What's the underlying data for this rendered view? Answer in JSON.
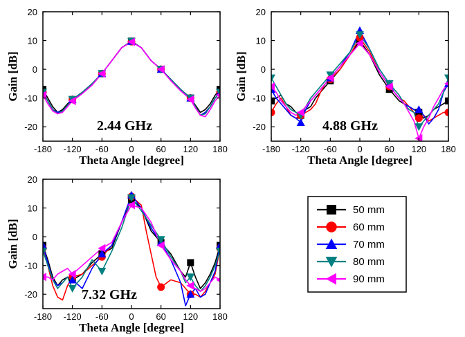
{
  "chart_data": [
    {
      "type": "line",
      "annotation": "2.44 GHz",
      "xlabel": "Theta Angle [degree]",
      "ylabel": "Gain [dB]",
      "xlim": [
        -180,
        180
      ],
      "ylim": [
        -25,
        20
      ],
      "xticks": [
        "-180",
        "-120",
        "-60",
        "0",
        "60",
        "120",
        "180"
      ],
      "yticks": [
        "-20",
        "-10",
        "0",
        "10",
        "20"
      ],
      "marker_x": [
        -180,
        -120,
        -60,
        0,
        60,
        120,
        180
      ],
      "series": [
        {
          "name": "50 mm",
          "x": [
            -180,
            -170,
            -160,
            -150,
            -140,
            -130,
            -120,
            -100,
            -80,
            -60,
            -40,
            -20,
            0,
            20,
            40,
            60,
            80,
            100,
            120,
            130,
            140,
            150,
            160,
            170,
            180
          ],
          "y": [
            -7,
            -10,
            -13,
            -15,
            -14,
            -12,
            -10.5,
            -8,
            -5,
            -1.5,
            3,
            7.5,
            9.8,
            7.5,
            3,
            0,
            -3.5,
            -7,
            -10,
            -12.5,
            -15,
            -14,
            -12,
            -9,
            -7
          ]
        },
        {
          "name": "60 mm",
          "x": [
            -180,
            -170,
            -160,
            -150,
            -140,
            -130,
            -120,
            -100,
            -80,
            -60,
            -40,
            -20,
            0,
            20,
            40,
            60,
            80,
            100,
            120,
            130,
            140,
            150,
            160,
            170,
            180
          ],
          "y": [
            -8,
            -11,
            -14,
            -15,
            -14.5,
            -12.5,
            -10.5,
            -8,
            -5,
            -1.5,
            3,
            7.5,
            9.6,
            7.5,
            3,
            0,
            -3.5,
            -7,
            -10,
            -13,
            -16,
            -15,
            -13,
            -10,
            -8
          ]
        },
        {
          "name": "70 mm",
          "x": [
            -180,
            -170,
            -160,
            -150,
            -140,
            -130,
            -120,
            -100,
            -80,
            -60,
            -40,
            -20,
            0,
            20,
            40,
            60,
            80,
            100,
            120,
            130,
            140,
            150,
            160,
            170,
            180
          ],
          "y": [
            -8,
            -11,
            -14,
            -15,
            -14.5,
            -12.5,
            -10.5,
            -8,
            -5,
            -1.5,
            3,
            7.5,
            9.7,
            7.5,
            3,
            0,
            -3.5,
            -7,
            -10,
            -13,
            -16,
            -15,
            -13,
            -10,
            -8
          ]
        },
        {
          "name": "80 mm",
          "x": [
            -180,
            -170,
            -160,
            -150,
            -140,
            -130,
            -120,
            -100,
            -80,
            -60,
            -40,
            -20,
            0,
            20,
            40,
            60,
            80,
            100,
            120,
            130,
            140,
            150,
            160,
            170,
            180
          ],
          "y": [
            -8,
            -11,
            -14,
            -15.5,
            -14.5,
            -12.5,
            -10.5,
            -8,
            -5,
            -1.5,
            3,
            7.5,
            9.7,
            7.5,
            3,
            0,
            -3.5,
            -7,
            -10,
            -13,
            -16,
            -15.5,
            -13,
            -10,
            -8
          ]
        },
        {
          "name": "90 mm",
          "x": [
            -180,
            -170,
            -160,
            -150,
            -140,
            -130,
            -120,
            -100,
            -80,
            -60,
            -40,
            -20,
            0,
            20,
            40,
            60,
            80,
            100,
            120,
            130,
            140,
            150,
            160,
            170,
            180
          ],
          "y": [
            -9,
            -12,
            -14.5,
            -15.5,
            -15,
            -13,
            -11,
            -8.5,
            -5.5,
            -1.5,
            3,
            7.5,
            9.5,
            7.5,
            3,
            0,
            -4,
            -7.5,
            -10.5,
            -13.5,
            -16,
            -16.5,
            -14,
            -11,
            -9
          ]
        }
      ]
    },
    {
      "type": "line",
      "annotation": "4.88 GHz",
      "xlabel": "Theta Angle [degree]",
      "ylabel": "Gain [dB]",
      "xlim": [
        -180,
        180
      ],
      "ylim": [
        -25,
        20
      ],
      "xticks": [
        "-180",
        "-120",
        "-60",
        "0",
        "60",
        "120",
        "180"
      ],
      "yticks": [
        "-20",
        "-10",
        "0",
        "10",
        "20"
      ],
      "marker_x": [
        -180,
        -120,
        -60,
        0,
        60,
        120,
        180
      ],
      "series": [
        {
          "name": "50 mm",
          "x": [
            -180,
            -170,
            -160,
            -150,
            -140,
            -130,
            -120,
            -110,
            -100,
            -90,
            -80,
            -70,
            -60,
            -40,
            -20,
            0,
            20,
            40,
            60,
            70,
            80,
            90,
            100,
            110,
            120,
            130,
            140,
            150,
            160,
            170,
            180
          ],
          "y": [
            -11,
            -10,
            -9,
            -12,
            -13,
            -15,
            -16,
            -14,
            -13,
            -10,
            -8,
            -6,
            -4,
            0,
            5,
            10,
            5,
            -2,
            -7,
            -9,
            -11,
            -12,
            -13,
            -14,
            -15,
            -17,
            -16,
            -14,
            -13,
            -12,
            -11
          ]
        },
        {
          "name": "60 mm",
          "x": [
            -180,
            -170,
            -160,
            -150,
            -140,
            -130,
            -120,
            -110,
            -100,
            -90,
            -80,
            -70,
            -60,
            -40,
            -20,
            0,
            20,
            40,
            60,
            70,
            80,
            90,
            100,
            110,
            120,
            130,
            140,
            150,
            160,
            170,
            180
          ],
          "y": [
            -15,
            -12,
            -10,
            -13,
            -16,
            -17,
            -16,
            -15,
            -14,
            -12,
            -8,
            -5,
            -3.5,
            0,
            5,
            11,
            6,
            -1,
            -6,
            -8,
            -10,
            -11,
            -13,
            -15,
            -17,
            -16,
            -18,
            -17,
            -16,
            -15,
            -15
          ]
        },
        {
          "name": "70 mm",
          "x": [
            -180,
            -170,
            -160,
            -150,
            -140,
            -130,
            -120,
            -110,
            -100,
            -90,
            -80,
            -70,
            -60,
            -40,
            -20,
            0,
            20,
            40,
            60,
            70,
            80,
            90,
            100,
            110,
            120,
            130,
            140,
            150,
            160,
            170,
            180
          ],
          "y": [
            -7,
            -10,
            -12,
            -14,
            -16,
            -17,
            -18.5,
            -14,
            -11,
            -9,
            -7,
            -5,
            -3,
            1,
            6,
            13.5,
            7,
            0,
            -5,
            -8,
            -10,
            -12,
            -13,
            -14,
            -14,
            -16,
            -19,
            -17,
            -14,
            -8,
            -5
          ]
        },
        {
          "name": "80 mm",
          "x": [
            -180,
            -170,
            -160,
            -150,
            -140,
            -130,
            -120,
            -110,
            -100,
            -90,
            -80,
            -70,
            -60,
            -40,
            -20,
            0,
            20,
            40,
            60,
            70,
            80,
            90,
            100,
            110,
            120,
            130,
            140,
            150,
            160,
            170,
            180
          ],
          "y": [
            -3,
            -6,
            -9,
            -12,
            -14,
            -15,
            -16,
            -13,
            -10,
            -8,
            -6,
            -4,
            -2,
            2,
            6,
            12,
            7,
            0,
            -5,
            -7,
            -9,
            -12,
            -14,
            -15,
            -20,
            -18,
            -16,
            -14,
            -12,
            -8,
            -3
          ]
        },
        {
          "name": "90 mm",
          "x": [
            -180,
            -170,
            -160,
            -150,
            -140,
            -130,
            -120,
            -110,
            -100,
            -90,
            -80,
            -70,
            -60,
            -40,
            -20,
            0,
            20,
            40,
            60,
            70,
            80,
            90,
            100,
            110,
            120,
            130,
            140,
            150,
            160,
            170,
            180
          ],
          "y": [
            -6,
            -8,
            -11,
            -13,
            -15,
            -16,
            -15,
            -13,
            -11,
            -9,
            -7,
            -5,
            -3,
            1,
            5,
            9,
            5,
            -1,
            -6,
            -8,
            -10,
            -12,
            -15,
            -18,
            -24,
            -20,
            -17,
            -13,
            -10,
            -7,
            -5
          ]
        }
      ]
    },
    {
      "type": "line",
      "annotation": "7.32 GHz",
      "xlabel": "Theta Angle [degree]",
      "ylabel": "Gain [dB]",
      "xlim": [
        -180,
        180
      ],
      "ylim": [
        -25,
        20
      ],
      "xticks": [
        "-180",
        "-120",
        "-60",
        "0",
        "60",
        "120",
        "180"
      ],
      "yticks": [
        "-20",
        "-10",
        "0",
        "10",
        "20"
      ],
      "marker_x": [
        -180,
        -120,
        -60,
        0,
        60,
        120,
        180
      ],
      "series": [
        {
          "name": "50 mm",
          "x": [
            -180,
            -170,
            -160,
            -150,
            -140,
            -130,
            -120,
            -100,
            -80,
            -60,
            -40,
            -20,
            0,
            20,
            40,
            60,
            80,
            100,
            110,
            120,
            130,
            140,
            150,
            160,
            170,
            180
          ],
          "y": [
            -3,
            -8,
            -14,
            -17,
            -15,
            -14,
            -15,
            -13,
            -9,
            -6,
            -4,
            5,
            13,
            10,
            2,
            -2,
            -6,
            -12,
            -14,
            -9,
            -14,
            -18,
            -16,
            -13,
            -9,
            -3
          ]
        },
        {
          "name": "60 mm",
          "x": [
            -180,
            -170,
            -160,
            -150,
            -140,
            -130,
            -120,
            -100,
            -80,
            -60,
            -40,
            -20,
            0,
            20,
            30,
            40,
            50,
            60,
            80,
            100,
            110,
            120,
            130,
            140,
            150,
            160,
            170,
            180
          ],
          "y": [
            -4,
            -10,
            -17,
            -21,
            -22,
            -17,
            -14,
            -13,
            -10,
            -7,
            -3,
            5,
            14,
            11,
            2,
            -6,
            -14,
            -17.5,
            -15,
            -16,
            -18,
            -20,
            -20,
            -21,
            -19,
            -16,
            -13,
            -4
          ]
        },
        {
          "name": "70 mm",
          "x": [
            -180,
            -170,
            -160,
            -150,
            -140,
            -130,
            -120,
            -100,
            -80,
            -60,
            -40,
            -20,
            0,
            20,
            40,
            60,
            80,
            100,
            110,
            120,
            130,
            140,
            150,
            160,
            170,
            180
          ],
          "y": [
            -3,
            -9,
            -15,
            -17,
            -16,
            -14,
            -15,
            -18,
            -11,
            -6,
            -3,
            5,
            14.5,
            10,
            3,
            -2,
            -8,
            -16,
            -24,
            -20,
            -18,
            -21,
            -20,
            -16,
            -12,
            -3
          ]
        },
        {
          "name": "80 mm",
          "x": [
            -180,
            -170,
            -160,
            -150,
            -140,
            -130,
            -120,
            -100,
            -80,
            -60,
            -40,
            -20,
            0,
            20,
            40,
            60,
            80,
            100,
            110,
            120,
            130,
            140,
            150,
            160,
            170,
            180
          ],
          "y": [
            -5,
            -10,
            -15,
            -18,
            -16,
            -14,
            -18,
            -14,
            -8,
            -12,
            -5,
            3,
            13.5,
            9,
            4,
            -1,
            -7,
            -12,
            -16,
            -14,
            -17,
            -19,
            -17,
            -14,
            -10,
            -5
          ]
        },
        {
          "name": "90 mm",
          "x": [
            -180,
            -170,
            -160,
            -150,
            -140,
            -130,
            -120,
            -100,
            -80,
            -60,
            -40,
            -20,
            0,
            20,
            40,
            60,
            80,
            100,
            110,
            120,
            130,
            140,
            150,
            160,
            170,
            180
          ],
          "y": [
            -14,
            -14,
            -15,
            -13,
            -12,
            -11,
            -13,
            -10,
            -7,
            -4,
            -2,
            5,
            11,
            10,
            5,
            -3,
            -8,
            -12,
            -15,
            -17,
            -18,
            -19,
            -18,
            -16,
            -14,
            -15
          ]
        }
      ]
    }
  ],
  "legend": {
    "items": [
      {
        "label": "50 mm",
        "color": "#000000",
        "marker": "square"
      },
      {
        "label": "60 mm",
        "color": "#ff0000",
        "marker": "circle"
      },
      {
        "label": "70 mm",
        "color": "#0000ff",
        "marker": "triangle-up"
      },
      {
        "label": "80 mm",
        "color": "#008080",
        "marker": "triangle-down"
      },
      {
        "label": "90 mm",
        "color": "#ff00ff",
        "marker": "triangle-left"
      }
    ]
  }
}
